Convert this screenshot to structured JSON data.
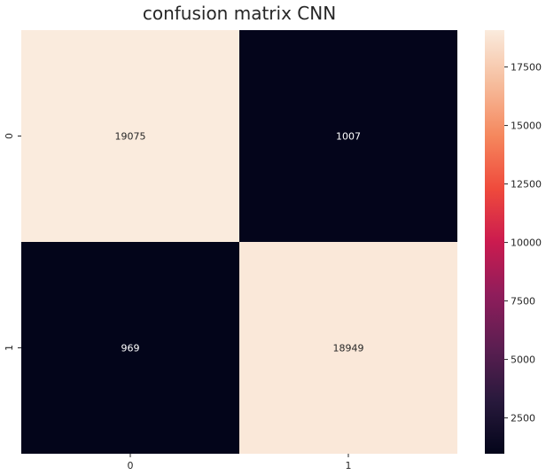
{
  "chart_data": {
    "type": "heatmap",
    "title": "confusion matrix CNN",
    "x_categories": [
      "0",
      "1"
    ],
    "y_categories": [
      "0",
      "1"
    ],
    "values": [
      [
        19075,
        1007
      ],
      [
        969,
        18949
      ]
    ],
    "colorbar": {
      "colormap": "rocket",
      "min": 969,
      "max": 19075,
      "ticks": [
        2500,
        5000,
        7500,
        10000,
        12500,
        15000,
        17500
      ]
    },
    "xlabel": "",
    "ylabel": "",
    "grid": false
  }
}
